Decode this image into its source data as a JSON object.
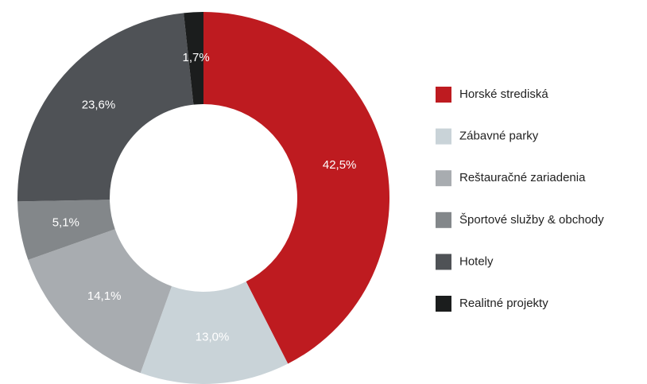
{
  "chart_data": {
    "type": "pie",
    "donut": true,
    "legend": "right",
    "categories": [
      "Horské strediská",
      "Zábavné parky",
      "Reštauračné zariadenia",
      "Športové služby & obchody",
      "Hotely",
      "Realitné projekty"
    ],
    "values": [
      42.5,
      13.0,
      14.1,
      5.1,
      23.6,
      1.7
    ],
    "value_labels": [
      "42,5%",
      "13,0%",
      "14,1%",
      "5,1%",
      "23,6%",
      "1,7%"
    ],
    "colors": [
      "#be1b20",
      "#c9d3d8",
      "#a8acb0",
      "#83878a",
      "#4f5256",
      "#1b1d1d"
    ]
  }
}
